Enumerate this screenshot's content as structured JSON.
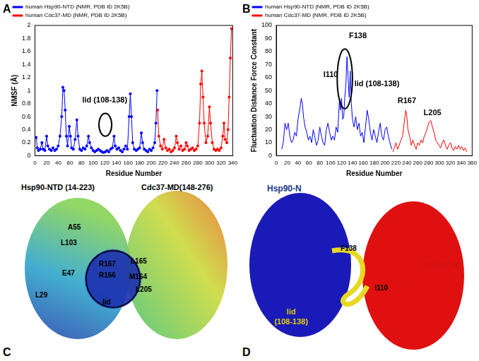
{
  "panel_labels": [
    "A",
    "B",
    "C",
    "D"
  ],
  "chart_data": [
    {
      "type": "line",
      "x_label": "Residue Number",
      "y_label": "NMSF (Å)",
      "xlim": [
        0,
        340
      ],
      "xticks": [
        0,
        20,
        40,
        60,
        80,
        100,
        120,
        140,
        160,
        180,
        200,
        220,
        240,
        260,
        280,
        300,
        320,
        340
      ],
      "ylim": [
        0,
        2
      ],
      "yticks": [
        0,
        0.2,
        0.4,
        0.6,
        0.8,
        1,
        1.2,
        1.4,
        1.6,
        1.8,
        2
      ],
      "grid": false,
      "legend": "upper left",
      "marker": "circle",
      "series": [
        {
          "name": "human Hsp90-NTD (NMR, PDB ID 2K5B)",
          "color": "#0000ff",
          "x": [
            2,
            4,
            6,
            9,
            12,
            14,
            17,
            20,
            22,
            25,
            28,
            31,
            34,
            37,
            40,
            43,
            46,
            48,
            50,
            52,
            54,
            56,
            59,
            61,
            63,
            66,
            69,
            72,
            74,
            77,
            80,
            83,
            86,
            89,
            92,
            94,
            97,
            100,
            103,
            106,
            109,
            112,
            115,
            118,
            121,
            124,
            127,
            130,
            133,
            136,
            138,
            141,
            144,
            147,
            150,
            153,
            156,
            159,
            162,
            164,
            166,
            168,
            171,
            174,
            177,
            180,
            183,
            185,
            188,
            191,
            194,
            197,
            200,
            203,
            206,
            208,
            210
          ],
          "values": [
            0.28,
            0.12,
            0.08,
            0.1,
            0.2,
            0.1,
            0.08,
            0.3,
            0.15,
            0.1,
            0.08,
            0.12,
            0.08,
            0.1,
            0.15,
            0.3,
            0.6,
            1.05,
            1.0,
            0.7,
            0.3,
            0.15,
            0.45,
            0.3,
            0.12,
            0.1,
            0.25,
            0.55,
            0.3,
            0.1,
            0.08,
            0.12,
            0.1,
            0.15,
            0.3,
            0.2,
            0.12,
            0.08,
            0.06,
            0.08,
            0.1,
            0.08,
            0.06,
            0.05,
            0.06,
            0.08,
            0.06,
            0.1,
            0.12,
            0.3,
            0.15,
            0.1,
            0.12,
            0.08,
            0.06,
            0.1,
            0.15,
            0.1,
            0.6,
            0.95,
            0.6,
            0.2,
            0.1,
            0.08,
            0.1,
            0.12,
            0.35,
            0.2,
            0.1,
            0.08,
            0.06,
            0.1,
            0.08,
            0.12,
            0.2,
            0.5,
            1.0
          ]
        },
        {
          "name": "human Cdc37-MD (NMR, PDB ID 2K5B)",
          "color": "#ff0000",
          "x": [
            211,
            213,
            216,
            219,
            222,
            225,
            228,
            231,
            234,
            237,
            240,
            243,
            245,
            248,
            251,
            254,
            257,
            260,
            262,
            265,
            268,
            271,
            274,
            277,
            280,
            283,
            285,
            287,
            289,
            291,
            294,
            297,
            300,
            302,
            305,
            308,
            311,
            314,
            317,
            320,
            323,
            325,
            327,
            330,
            332,
            334,
            336,
            338
          ],
          "values": [
            0.7,
            0.3,
            0.15,
            0.1,
            0.25,
            0.12,
            0.08,
            0.1,
            0.06,
            0.08,
            0.12,
            0.3,
            0.2,
            0.1,
            0.15,
            0.08,
            0.1,
            0.2,
            0.15,
            0.08,
            0.1,
            0.12,
            0.08,
            0.1,
            0.15,
            0.5,
            1.1,
            1.3,
            0.9,
            0.5,
            0.2,
            0.3,
            0.75,
            0.5,
            0.2,
            0.1,
            0.08,
            0.1,
            0.08,
            0.12,
            0.3,
            0.5,
            0.25,
            0.2,
            0.4,
            0.9,
            1.5,
            1.95
          ]
        }
      ],
      "annotations": [
        {
          "text": "lid (108-138)",
          "x": 120,
          "y": 0.85,
          "region": {
            "x": [
              110,
              132
            ],
            "y": [
              0.3,
              0.65
            ]
          }
        }
      ]
    },
    {
      "type": "line",
      "x_label": "Residue Number",
      "y_label": "Fluctuation Distance Force Constant",
      "xlim": [
        0,
        360
      ],
      "xticks": [
        0,
        20,
        40,
        60,
        80,
        100,
        120,
        140,
        160,
        180,
        200,
        220,
        240,
        260,
        280,
        300,
        320,
        340,
        360
      ],
      "ylim": [
        0,
        100
      ],
      "yticks": [
        0,
        10,
        20,
        30,
        40,
        50,
        60,
        70,
        80,
        90,
        100
      ],
      "grid": false,
      "legend": "upper left",
      "marker": "none",
      "series": [
        {
          "name": "human Hsp90-NTD (NMR, PDB ID 2K5B)",
          "color": "#0000ff",
          "x": [
            10,
            13,
            16,
            19,
            22,
            25,
            28,
            31,
            34,
            37,
            40,
            43,
            46,
            48,
            50,
            53,
            56,
            59,
            62,
            65,
            68,
            71,
            74,
            77,
            80,
            83,
            86,
            89,
            92,
            95,
            98,
            101,
            104,
            107,
            110,
            113,
            116,
            118,
            120,
            122,
            124,
            126,
            128,
            130,
            132,
            134,
            136,
            138,
            140,
            143,
            146,
            149,
            152,
            155,
            158,
            161,
            164,
            167,
            170,
            173,
            176,
            179,
            182,
            185,
            188,
            191,
            194,
            197,
            200,
            203,
            206,
            209,
            212
          ],
          "values": [
            5,
            10,
            25,
            20,
            25,
            15,
            10,
            12,
            18,
            15,
            28,
            35,
            44,
            40,
            30,
            22,
            18,
            12,
            15,
            10,
            20,
            14,
            8,
            12,
            22,
            15,
            10,
            8,
            20,
            25,
            18,
            12,
            15,
            12,
            22,
            18,
            42,
            35,
            44,
            28,
            30,
            45,
            55,
            76,
            60,
            45,
            65,
            40,
            28,
            22,
            30,
            20,
            25,
            15,
            18,
            10,
            22,
            35,
            28,
            18,
            12,
            20,
            15,
            10,
            18,
            25,
            15,
            12,
            20,
            22,
            15,
            10,
            5
          ]
        },
        {
          "name": "human Cdc37-MD (NMR, PDB ID 2K5B)",
          "color": "#ff0000",
          "x": [
            214,
            217,
            220,
            223,
            226,
            229,
            232,
            235,
            238,
            240,
            242,
            245,
            248,
            251,
            254,
            257,
            260,
            263,
            266,
            269,
            272,
            275,
            278,
            281,
            284,
            287,
            290,
            293,
            296,
            299,
            302,
            305,
            308,
            311,
            314,
            317,
            320,
            323,
            326,
            329,
            332,
            335,
            338,
            341,
            344,
            347,
            350
          ],
          "values": [
            3,
            6,
            10,
            5,
            8,
            12,
            15,
            25,
            35,
            30,
            20,
            15,
            8,
            12,
            8,
            5,
            10,
            8,
            12,
            10,
            15,
            18,
            22,
            26,
            27,
            22,
            18,
            12,
            10,
            8,
            6,
            10,
            12,
            8,
            5,
            8,
            10,
            6,
            4,
            7,
            5,
            8,
            5,
            7,
            4,
            6,
            3
          ]
        }
      ],
      "annotations": [
        {
          "text": "I110",
          "x": 100,
          "y": 62
        },
        {
          "text": "F138",
          "x": 150,
          "y": 92
        },
        {
          "text": "lid (108-138)",
          "x": 185,
          "y": 55,
          "region": {
            "x": [
              112,
              140
            ],
            "y": [
              36,
              82
            ]
          }
        },
        {
          "text": "R167",
          "x": 240,
          "y": 42
        },
        {
          "text": "L205",
          "x": 287,
          "y": 33
        }
      ]
    }
  ],
  "diagrams": {
    "C": {
      "protein_1": "Hsp90-NTD (14-223)",
      "protein_2": "Cdc37-MD(148-276)",
      "residues": [
        "A55",
        "L103",
        "E47",
        "L29",
        "R167",
        "R166",
        "L165",
        "M164",
        "L205"
      ],
      "region": "lid"
    },
    "D": {
      "protein_1": "Hsp90-N",
      "protein_2": "Cdc37-M",
      "residues": [
        "F138",
        "I110"
      ],
      "region": [
        "lid",
        "(108-138)"
      ]
    }
  }
}
